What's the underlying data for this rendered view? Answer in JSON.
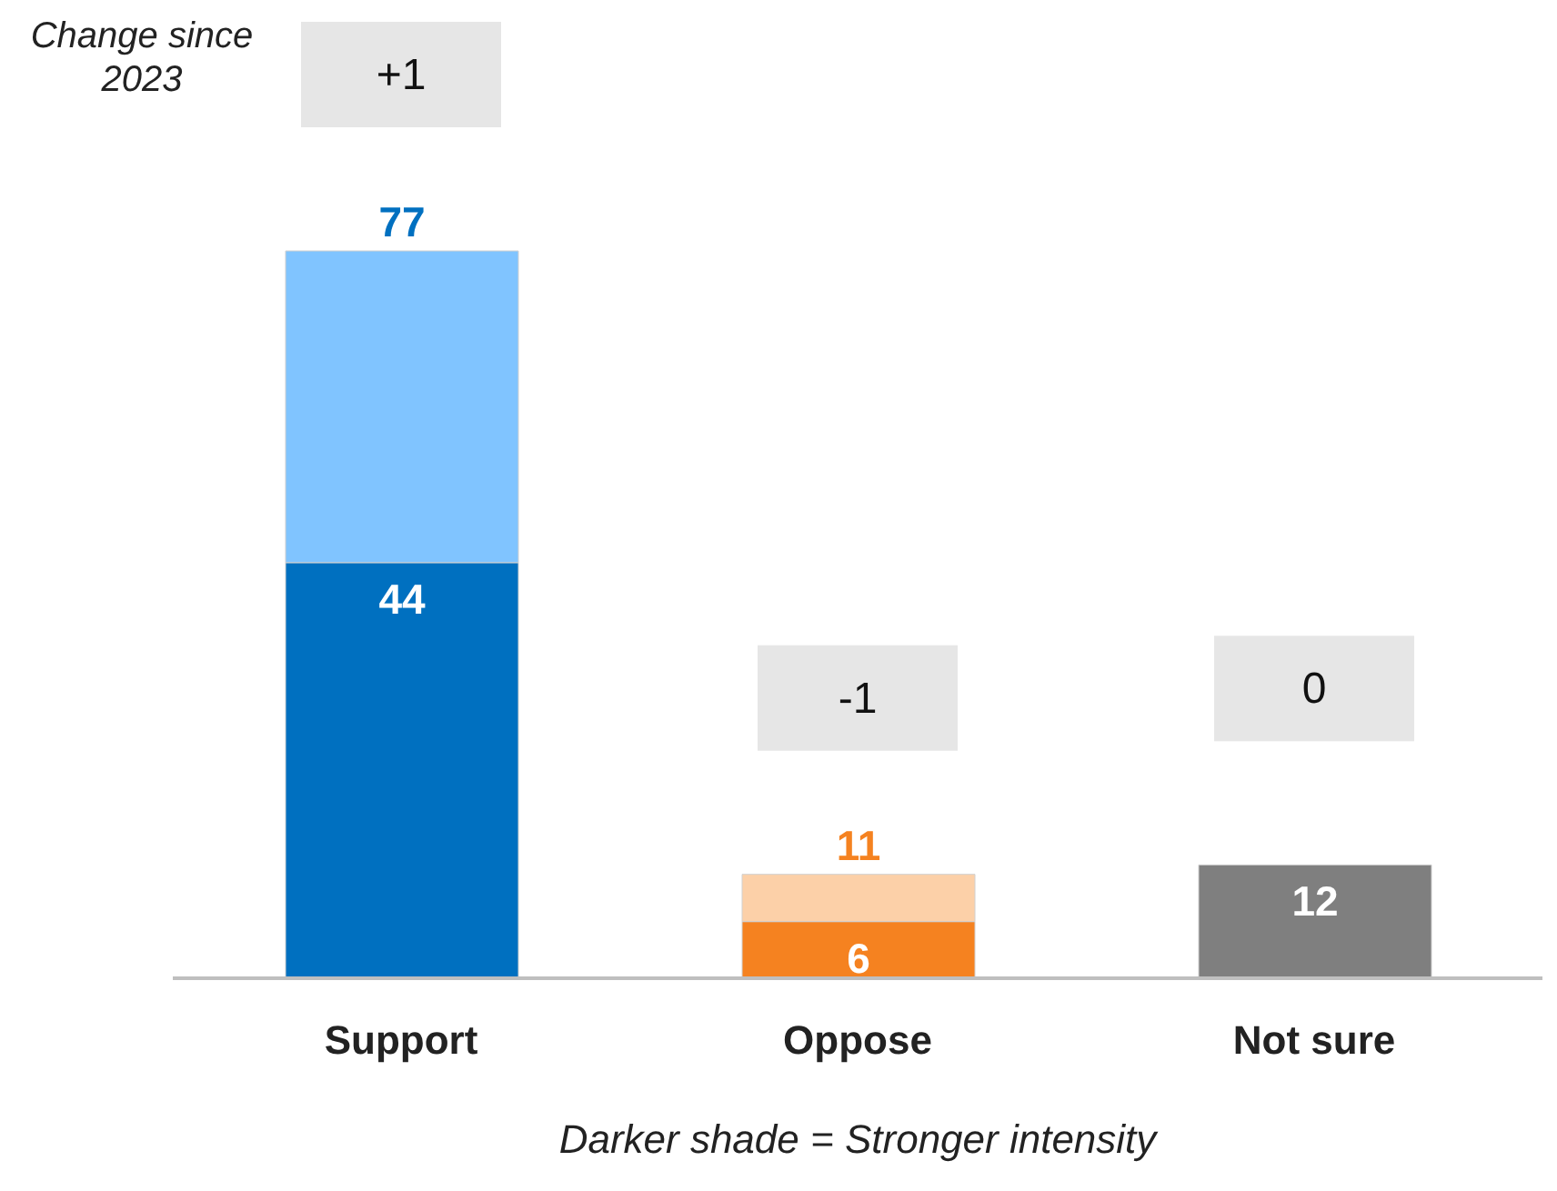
{
  "chart_data": {
    "type": "bar",
    "stacked": true,
    "categories": [
      "Support",
      "Oppose",
      "Not sure"
    ],
    "series": [
      {
        "values": [
          44,
          6,
          12
        ],
        "colors": [
          "#0070c0",
          "#f58220",
          "#7f7f7f"
        ],
        "value_labels": [
          "44",
          "6",
          "12"
        ]
      },
      {
        "values": [
          33,
          5,
          null
        ],
        "colors": [
          "#80c4ff",
          "#fcd0a8",
          "#bfbfbf"
        ]
      }
    ],
    "totals": [
      "77",
      "11",
      null
    ],
    "annotations": [
      "Change since 2023",
      "+1",
      "-1",
      "0",
      "Darker shade = Stronger intensity"
    ]
  }
}
